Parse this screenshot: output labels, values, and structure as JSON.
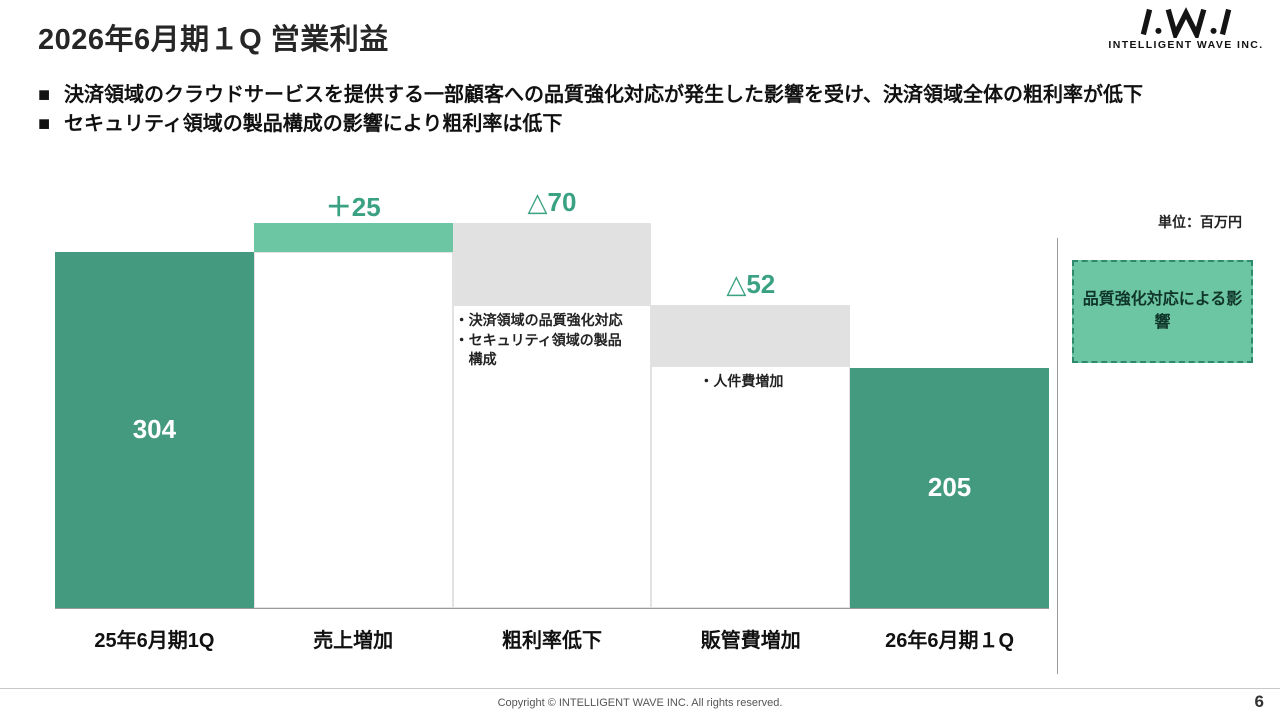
{
  "header": {
    "title": "2026年6月期１Q 営業利益",
    "logo_company": "INTELLIGENT WAVE INC."
  },
  "bullets": [
    "決済領域のクラウドサービスを提供する一部顧客への品質強化対応が発生した影響を受け、決済領域全体の粗利率が低下",
    "セキュリティ領域の製品構成の影響により粗利率は低下"
  ],
  "unit_label": "単位：百万円",
  "highlight_box": {
    "text": "品質強化対応による影響",
    "bg_color": "#6cc6a3",
    "border_color": "#2e8a6c",
    "text_color": "#10352a"
  },
  "chart_data": {
    "type": "bar",
    "subtype": "waterfall",
    "title": "2026年6月期１Q 営業利益",
    "unit": "百万円",
    "categories": [
      "25年6月期1Q",
      "売上増加",
      "粗利率低下",
      "販管費増加",
      "26年6月期１Q"
    ],
    "values": [
      304,
      25,
      -70,
      -52,
      205
    ],
    "value_labels": [
      "304",
      "＋25",
      "△70",
      "△52",
      "205"
    ],
    "bar_roles": [
      "total",
      "increase",
      "decrease",
      "decrease",
      "total"
    ],
    "colors": {
      "total": "#449a7e",
      "increase": "#6cc6a3",
      "decrease": "#e1e1e1",
      "delta_label": "#3ba183"
    },
    "annotations": [
      {
        "column_index": 2,
        "lines": [
          "・決済領域の品質強化対応",
          "・セキュリティ領域の製品",
          "　構成"
        ]
      },
      {
        "column_index": 3,
        "lines": [
          "・人件費増加"
        ]
      }
    ]
  },
  "footer": {
    "copyright": "Copyright © INTELLIGENT WAVE INC. All rights reserved.",
    "page": "6"
  }
}
